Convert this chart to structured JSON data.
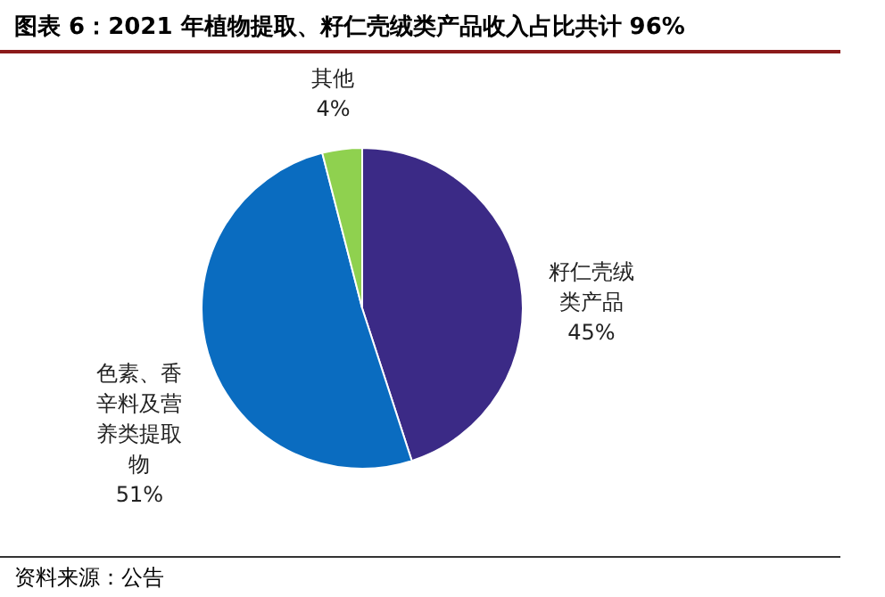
{
  "chart_data": {
    "type": "pie",
    "title": "图表 6：2021 年植物提取、籽仁壳绒类产品收入占比共计 96%",
    "categories": [
      "籽仁壳绒类产品",
      "色素、香辛料及营养类提取物",
      "其他"
    ],
    "values": [
      45,
      51,
      4
    ],
    "value_labels": [
      "45%",
      "51%",
      "4%"
    ],
    "colors": [
      "#3b2a86",
      "#0a6cc0",
      "#8fd14f"
    ],
    "annotations": [
      "资料来源：公告"
    ]
  }
}
